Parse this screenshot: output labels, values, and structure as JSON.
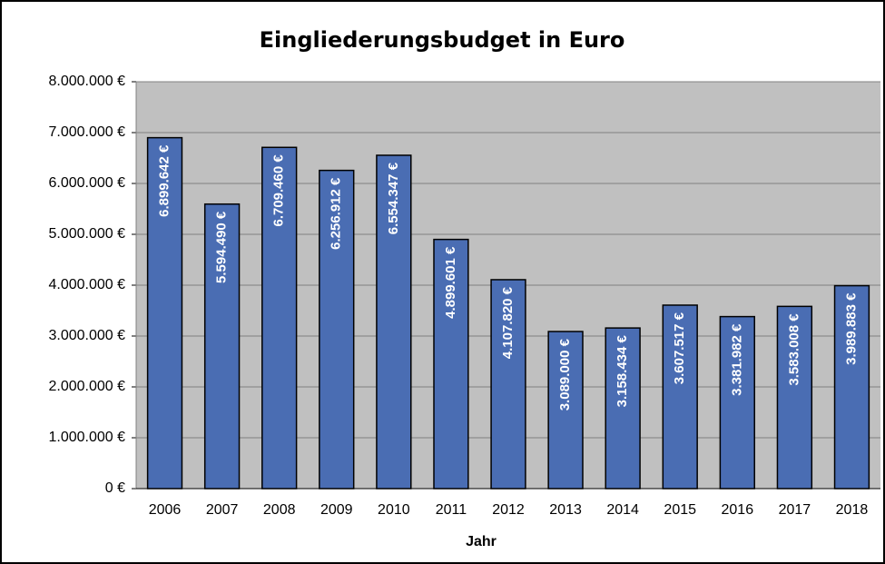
{
  "chart_data": {
    "type": "bar",
    "title": "Eingliederungsbudget in Euro",
    "x_label": "Jahr",
    "categories": [
      "2006",
      "2007",
      "2008",
      "2009",
      "2010",
      "2011",
      "2012",
      "2013",
      "2014",
      "2015",
      "2016",
      "2017",
      "2018"
    ],
    "values": [
      6899642,
      5594490,
      6709460,
      6256912,
      6554347,
      4899601,
      4107820,
      3089000,
      3158434,
      3607517,
      3381982,
      3583008,
      3989883
    ],
    "value_labels": [
      "6.899.642 €",
      "5.594.490 €",
      "6.709.460 €",
      "6.256.912 €",
      "6.554.347 €",
      "4.899.601 €",
      "4.107.820 €",
      "3.089.000 €",
      "3.158.434 €",
      "3.607.517 €",
      "3.381.982 €",
      "3.583.008 €",
      "3.989.883 €"
    ],
    "color": "#4a6db3",
    "ylim": [
      0,
      8000000
    ],
    "yticks": [
      {
        "value": 0,
        "label": "0 €"
      },
      {
        "value": 1000000,
        "label": "1.000.000 €"
      },
      {
        "value": 2000000,
        "label": "2.000.000 €"
      },
      {
        "value": 3000000,
        "label": "3.000.000 €"
      },
      {
        "value": 4000000,
        "label": "4.000.000 €"
      },
      {
        "value": 5000000,
        "label": "5.000.000 €"
      },
      {
        "value": 6000000,
        "label": "6.000.000 €"
      },
      {
        "value": 7000000,
        "label": "7.000.000 €"
      },
      {
        "value": 8000000,
        "label": "8.000.000 €"
      }
    ],
    "grid": true
  }
}
